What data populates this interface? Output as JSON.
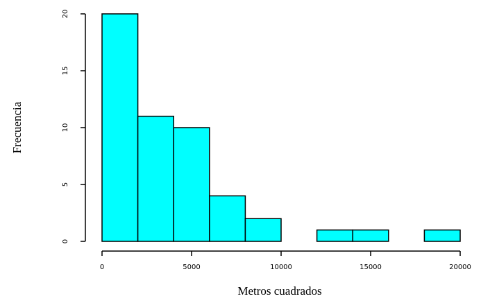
{
  "chart_data": {
    "type": "bar",
    "title": "",
    "xlabel": "Metros cuadrados",
    "ylabel": "Frecuencia",
    "bins": [
      {
        "start": 0,
        "end": 2000,
        "count": 20
      },
      {
        "start": 2000,
        "end": 4000,
        "count": 11
      },
      {
        "start": 4000,
        "end": 6000,
        "count": 10
      },
      {
        "start": 6000,
        "end": 8000,
        "count": 4
      },
      {
        "start": 8000,
        "end": 10000,
        "count": 2
      },
      {
        "start": 10000,
        "end": 12000,
        "count": 0
      },
      {
        "start": 12000,
        "end": 14000,
        "count": 1
      },
      {
        "start": 14000,
        "end": 16000,
        "count": 1
      },
      {
        "start": 16000,
        "end": 18000,
        "count": 0
      },
      {
        "start": 18000,
        "end": 20000,
        "count": 1
      }
    ],
    "xlim": [
      0,
      20000
    ],
    "ylim": [
      0,
      20
    ],
    "x_ticks": [
      0,
      5000,
      10000,
      15000,
      20000
    ],
    "x_tick_labels": [
      "0",
      "5000",
      "10000",
      "15000",
      "20000"
    ],
    "y_ticks": [
      0,
      5,
      10,
      15,
      20
    ],
    "y_tick_labels": [
      "0",
      "5",
      "10",
      "15",
      "20"
    ],
    "grid": false,
    "legend": "none",
    "bar_color": "#00ffff",
    "edge_color": "#000000"
  }
}
